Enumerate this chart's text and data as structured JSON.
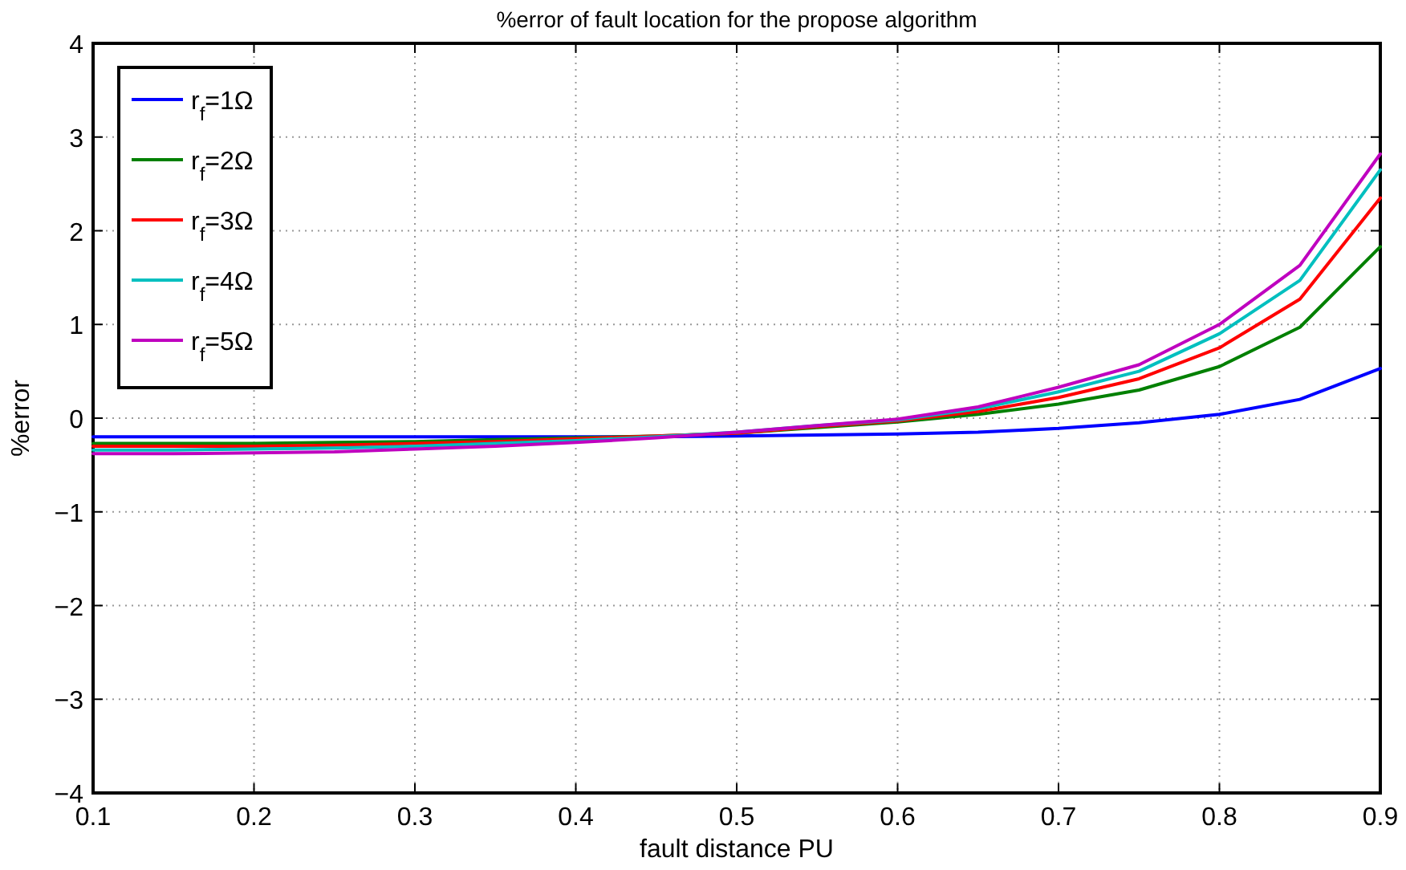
{
  "chart_data": {
    "type": "line",
    "title": "%error of fault location for the propose algorithm",
    "xlabel": "fault distance PU",
    "ylabel": "%error",
    "x": [
      0.1,
      0.15,
      0.2,
      0.25,
      0.3,
      0.35,
      0.4,
      0.45,
      0.5,
      0.55,
      0.6,
      0.65,
      0.7,
      0.75,
      0.8,
      0.85,
      0.9
    ],
    "series": [
      {
        "name": "r$_{f}$=1Ω",
        "color": "#0000ff",
        "values": [
          -0.2,
          -0.2,
          -0.2,
          -0.2,
          -0.2,
          -0.2,
          -0.2,
          -0.2,
          -0.19,
          -0.18,
          -0.17,
          -0.15,
          -0.11,
          -0.05,
          0.04,
          0.2,
          0.53
        ]
      },
      {
        "name": "r$_{f}$=2Ω",
        "color": "#008000",
        "values": [
          -0.27,
          -0.27,
          -0.27,
          -0.26,
          -0.25,
          -0.23,
          -0.21,
          -0.19,
          -0.16,
          -0.1,
          -0.04,
          0.04,
          0.15,
          0.3,
          0.55,
          0.97,
          1.83
        ]
      },
      {
        "name": "r$_{f}$=3Ω",
        "color": "#ff0000",
        "values": [
          -0.3,
          -0.3,
          -0.3,
          -0.29,
          -0.27,
          -0.25,
          -0.22,
          -0.19,
          -0.16,
          -0.09,
          -0.03,
          0.07,
          0.22,
          0.42,
          0.75,
          1.27,
          2.35
        ]
      },
      {
        "name": "r$_{f}$=4Ω",
        "color": "#00bfbf",
        "values": [
          -0.34,
          -0.34,
          -0.33,
          -0.32,
          -0.3,
          -0.27,
          -0.24,
          -0.2,
          -0.15,
          -0.08,
          -0.02,
          0.1,
          0.28,
          0.5,
          0.9,
          1.47,
          2.65
        ]
      },
      {
        "name": "r$_{f}$=5Ω",
        "color": "#bf00bf",
        "values": [
          -0.38,
          -0.38,
          -0.37,
          -0.36,
          -0.33,
          -0.3,
          -0.26,
          -0.21,
          -0.15,
          -0.08,
          -0.01,
          0.12,
          0.33,
          0.57,
          1.0,
          1.63,
          2.82
        ]
      }
    ],
    "xlim": [
      0.1,
      0.9
    ],
    "xticks": [
      {
        "value": 0.1,
        "label": "0.1"
      },
      {
        "value": 0.2,
        "label": "0.2"
      },
      {
        "value": 0.3,
        "label": "0.3"
      },
      {
        "value": 0.4,
        "label": "0.4"
      },
      {
        "value": 0.5,
        "label": "0.5"
      },
      {
        "value": 0.6,
        "label": "0.6"
      },
      {
        "value": 0.7,
        "label": "0.7"
      },
      {
        "value": 0.8,
        "label": "0.8"
      },
      {
        "value": 0.9,
        "label": "0.9"
      }
    ],
    "ylim": [
      -4,
      4
    ],
    "yticks": [
      {
        "value": -4,
        "label": "−4"
      },
      {
        "value": -3,
        "label": "−3"
      },
      {
        "value": -2,
        "label": "−2"
      },
      {
        "value": -1,
        "label": "−1"
      },
      0,
      1,
      2,
      3,
      4
    ],
    "grid": true,
    "legend": "top left",
    "marker": "none",
    "line_style": "solid"
  }
}
